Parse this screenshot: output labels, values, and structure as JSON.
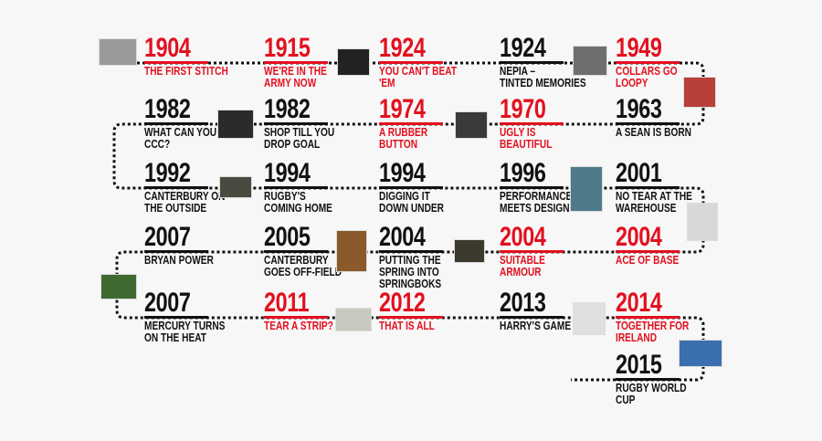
{
  "colors": {
    "accent": "#e3101f",
    "text": "#111111",
    "background": "#f7f7f7"
  },
  "entries": [
    {
      "year": "1904",
      "lines": [
        "THE FIRST STITCH"
      ],
      "red": true
    },
    {
      "year": "1915",
      "lines": [
        "WE'RE IN THE",
        "ARMY NOW"
      ],
      "red": true
    },
    {
      "year": "1924",
      "lines": [
        "YOU CAN'T BEAT",
        "'EM"
      ],
      "red": true
    },
    {
      "year": "1924",
      "lines": [
        "NEPIA –",
        "TINTED MEMORIES"
      ],
      "red": false
    },
    {
      "year": "1949",
      "lines": [
        "COLLARS GO",
        "LOOPY"
      ],
      "red": true
    },
    {
      "year": "1982",
      "lines": [
        "WHAT CAN YOU",
        "CCC?"
      ],
      "red": false
    },
    {
      "year": "1982",
      "lines": [
        "SHOP TILL YOU",
        "DROP GOAL"
      ],
      "red": false
    },
    {
      "year": "1974",
      "lines": [
        "A RUBBER",
        "BUTTON"
      ],
      "red": true
    },
    {
      "year": "1970",
      "lines": [
        "UGLY IS",
        "BEAUTIFUL"
      ],
      "red": true
    },
    {
      "year": "1963",
      "lines": [
        "A SEAN IS BORN"
      ],
      "red": false
    },
    {
      "year": "1992",
      "lines": [
        "CANTERBURY ON",
        "THE OUTSIDE"
      ],
      "red": false
    },
    {
      "year": "1994",
      "lines": [
        "RUGBY'S",
        "COMING HOME"
      ],
      "red": false
    },
    {
      "year": "1994",
      "lines": [
        "DIGGING IT",
        "DOWN UNDER"
      ],
      "red": false
    },
    {
      "year": "1996",
      "lines": [
        "PERFORMANCE",
        "MEETS DESIGN"
      ],
      "red": false
    },
    {
      "year": "2001",
      "lines": [
        "NO TEAR AT THE",
        "WAREHOUSE"
      ],
      "red": false
    },
    {
      "year": "2007",
      "lines": [
        "BRYAN POWER"
      ],
      "red": false
    },
    {
      "year": "2005",
      "lines": [
        "CANTERBURY",
        "GOES OFF-FIELD"
      ],
      "red": false
    },
    {
      "year": "2004",
      "lines": [
        "PUTTING THE",
        "SPRING INTO",
        "SPRINGBOKS"
      ],
      "red": false
    },
    {
      "year": "2004",
      "lines": [
        "SUITABLE",
        "ARMOUR"
      ],
      "red": true
    },
    {
      "year": "2004",
      "lines": [
        "ACE OF BASE"
      ],
      "red": true
    },
    {
      "year": "2007",
      "lines": [
        "MERCURY TURNS",
        "ON THE HEAT"
      ],
      "red": false
    },
    {
      "year": "2011",
      "lines": [
        "TEAR A STRIP?"
      ],
      "red": true
    },
    {
      "year": "2012",
      "lines": [
        "THAT IS ALL"
      ],
      "red": true
    },
    {
      "year": "2013",
      "lines": [
        "HARRY'S GAME"
      ],
      "red": false
    },
    {
      "year": "2014",
      "lines": [
        "TOGETHER FOR",
        "IRELAND"
      ],
      "red": true
    },
    {
      "year": "2015",
      "lines": [
        "RUGBY WORLD",
        "CUP"
      ],
      "red": false
    }
  ],
  "photos": [
    {
      "name": "building-photo",
      "color": "#9a9a9a"
    },
    {
      "name": "army-badge-photo",
      "color": "#222222"
    },
    {
      "name": "canterbury-logo",
      "color": "#2b2b2b"
    },
    {
      "name": "rubber-button-photo",
      "color": "#3a3a3a"
    },
    {
      "name": "nepia-photo",
      "color": "#6e6e6e"
    },
    {
      "name": "collar-jersey-photo",
      "color": "#b8403a"
    },
    {
      "name": "team-photo-1992",
      "color": "#4a4a40"
    },
    {
      "name": "player-photo-1996",
      "color": "#4f7a8a"
    },
    {
      "name": "warehouse-shirt-photo",
      "color": "#d8d8d8"
    },
    {
      "name": "off-field-photo",
      "color": "#8a5a2a"
    },
    {
      "name": "springboks-crowd-photo",
      "color": "#3c3a2c"
    },
    {
      "name": "bryan-habana-photo",
      "color": "#3f6a2f"
    },
    {
      "name": "tear-strip-photo",
      "color": "#c8c8c0"
    },
    {
      "name": "harrys-game-photo",
      "color": "#e0e0e0"
    },
    {
      "name": "rugby-world-cup-2015-logo",
      "color": "#3a6fb0"
    }
  ]
}
